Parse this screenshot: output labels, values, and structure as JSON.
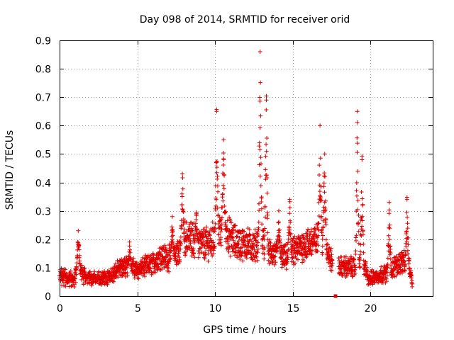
{
  "chart_data": {
    "type": "scatter",
    "title": "Day 098 of 2014, SRMTID for receiver orid",
    "xlabel": "GPS time / hours",
    "ylabel": "SRMTID / TECUs",
    "xlim": [
      0,
      24
    ],
    "ylim": [
      0,
      0.9
    ],
    "x_ticks": [
      0,
      5,
      10,
      15,
      20
    ],
    "x_tick_labels": [
      "0",
      "5",
      "10",
      "15",
      "20"
    ],
    "y_ticks": [
      0,
      0.1,
      0.2,
      0.3,
      0.4,
      0.5,
      0.6,
      0.7,
      0.8,
      0.9
    ],
    "y_tick_labels": [
      "0",
      "0.1",
      "0.2",
      "0.3",
      "0.4",
      "0.5",
      "0.6",
      "0.7",
      "0.8",
      "0.9"
    ],
    "grid": true,
    "legend": false,
    "series": [
      {
        "name": "SRMTID",
        "marker": "+",
        "color": "#e00000",
        "x_step_hours": 0.01,
        "baseline_knots": [
          [
            0,
            0.07
          ],
          [
            0.5,
            0.06
          ],
          [
            1,
            0.06
          ],
          [
            1.2,
            0.12
          ],
          [
            1.5,
            0.07
          ],
          [
            2,
            0.06
          ],
          [
            2.5,
            0.06
          ],
          [
            3,
            0.06
          ],
          [
            3.5,
            0.08
          ],
          [
            4,
            0.1
          ],
          [
            4.5,
            0.1
          ],
          [
            5,
            0.09
          ],
          [
            5.5,
            0.1
          ],
          [
            6,
            0.11
          ],
          [
            6.5,
            0.14
          ],
          [
            7,
            0.13
          ],
          [
            7.5,
            0.14
          ],
          [
            8,
            0.2
          ],
          [
            8.5,
            0.2
          ],
          [
            9,
            0.18
          ],
          [
            9.5,
            0.18
          ],
          [
            10,
            0.2
          ],
          [
            10.5,
            0.25
          ],
          [
            11,
            0.2
          ],
          [
            11.5,
            0.18
          ],
          [
            12,
            0.18
          ],
          [
            12.5,
            0.17
          ],
          [
            13,
            0.2
          ],
          [
            13.5,
            0.15
          ],
          [
            14,
            0.14
          ],
          [
            14.5,
            0.13
          ],
          [
            15,
            0.15
          ],
          [
            15.5,
            0.17
          ],
          [
            16,
            0.18
          ],
          [
            16.5,
            0.19
          ],
          [
            17,
            0.2
          ],
          [
            17.3,
            0.14
          ],
          [
            17.5,
            0.12
          ],
          [
            18,
            0.1
          ],
          [
            18.5,
            0.1
          ],
          [
            19,
            0.1
          ],
          [
            19.5,
            0.12
          ],
          [
            19.8,
            0.07
          ],
          [
            20,
            0.06
          ],
          [
            20.5,
            0.07
          ],
          [
            21,
            0.08
          ],
          [
            21.5,
            0.1
          ],
          [
            22,
            0.12
          ],
          [
            22.5,
            0.1
          ],
          [
            22.7,
            0.05
          ]
        ],
        "spikes": [
          {
            "x": 1.2,
            "peak": 0.23
          },
          {
            "x": 4.5,
            "peak": 0.19
          },
          {
            "x": 7.25,
            "peak": 0.28
          },
          {
            "x": 7.9,
            "peak": 0.43
          },
          {
            "x": 8.8,
            "peak": 0.29
          },
          {
            "x": 10.1,
            "peak": 0.65
          },
          {
            "x": 10.55,
            "peak": 0.55
          },
          {
            "x": 12.9,
            "peak": 0.86
          },
          {
            "x": 13.3,
            "peak": 0.69
          },
          {
            "x": 14.1,
            "peak": 0.3
          },
          {
            "x": 14.8,
            "peak": 0.34
          },
          {
            "x": 16.75,
            "peak": 0.6
          },
          {
            "x": 17.05,
            "peak": 0.5
          },
          {
            "x": 19.15,
            "peak": 0.65
          },
          {
            "x": 19.45,
            "peak": 0.48
          },
          {
            "x": 21.2,
            "peak": 0.33
          },
          {
            "x": 22.35,
            "peak": 0.34
          }
        ],
        "gap": [
          17.55,
          17.95
        ],
        "x_range": [
          0,
          22.7
        ]
      }
    ]
  }
}
